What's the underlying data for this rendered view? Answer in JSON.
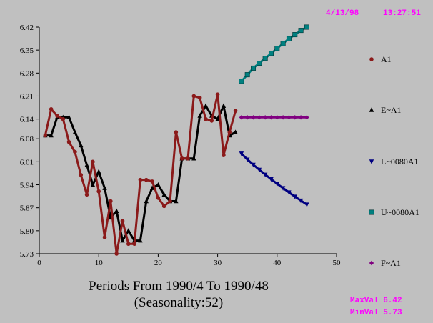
{
  "header": {
    "date": "4/13/98",
    "time": "13:27:51"
  },
  "footer": {
    "caption_line1": "Periods From 1990/4 To 1990/48",
    "caption_line2": "(Seasonality:52)",
    "max_label": "MaxVal 6.42",
    "min_label": "MinVal 5.73"
  },
  "chart_data": {
    "type": "line",
    "xlim": [
      0,
      50
    ],
    "ylim": [
      5.73,
      6.42
    ],
    "x_ticks": [
      0,
      10,
      20,
      30,
      40,
      50
    ],
    "y_ticks": [
      "5.73",
      "5.80",
      "5.87",
      "5.94",
      "6.01",
      "6.08",
      "6.14",
      "6.21",
      "6.28",
      "6.35",
      "6.42"
    ],
    "grid": false,
    "legend_position": "right",
    "series": [
      {
        "name": "A1",
        "color": "#8b1a1a",
        "marker": "circle",
        "x": [
          1,
          2,
          3,
          4,
          5,
          6,
          7,
          8,
          9,
          10,
          11,
          12,
          13,
          14,
          15,
          16,
          17,
          18,
          19,
          20,
          21,
          22,
          23,
          24,
          25,
          26,
          27,
          28,
          29,
          30,
          31,
          32,
          33
        ],
        "values": [
          6.09,
          6.17,
          6.15,
          6.14,
          6.07,
          6.04,
          5.97,
          5.91,
          6.01,
          5.92,
          5.78,
          5.89,
          5.73,
          5.83,
          5.76,
          5.76,
          5.955,
          5.955,
          5.95,
          5.9,
          5.875,
          5.89,
          6.1,
          6.02,
          6.02,
          6.21,
          6.205,
          6.14,
          6.135,
          6.215,
          6.03,
          6.1,
          6.165
        ]
      },
      {
        "name": "E~A1",
        "color": "#000000",
        "marker": "triangle-up",
        "x": [
          1,
          2,
          3,
          4,
          5,
          6,
          7,
          8,
          9,
          10,
          11,
          12,
          13,
          14,
          15,
          16,
          17,
          18,
          19,
          20,
          21,
          22,
          23,
          24,
          25,
          26,
          27,
          28,
          29,
          30,
          31,
          32,
          33
        ],
        "values": [
          6.09,
          6.09,
          6.145,
          6.145,
          6.145,
          6.1,
          6.06,
          6.0,
          5.94,
          5.98,
          5.93,
          5.84,
          5.86,
          5.77,
          5.8,
          5.77,
          5.77,
          5.89,
          5.93,
          5.94,
          5.91,
          5.89,
          5.89,
          6.02,
          6.02,
          6.02,
          6.15,
          6.18,
          6.15,
          6.14,
          6.18,
          6.09,
          6.1
        ]
      },
      {
        "name": "L~0080A1",
        "color": "#000080",
        "marker": "triangle-down",
        "x": [
          34,
          35,
          36,
          37,
          38,
          39,
          40,
          41,
          42,
          43,
          44,
          45
        ],
        "values": [
          6.035,
          6.017,
          6.001,
          5.986,
          5.971,
          5.957,
          5.943,
          5.93,
          5.917,
          5.904,
          5.892,
          5.88
        ]
      },
      {
        "name": "U~0080A1",
        "color": "#008080",
        "marker": "square",
        "x": [
          34,
          35,
          36,
          37,
          38,
          39,
          40,
          41,
          42,
          43,
          44,
          45
        ],
        "values": [
          6.255,
          6.275,
          6.295,
          6.31,
          6.325,
          6.34,
          6.355,
          6.37,
          6.385,
          6.397,
          6.41,
          6.42
        ]
      },
      {
        "name": "F~A1",
        "color": "#800080",
        "marker": "diamond",
        "x": [
          34,
          35,
          36,
          37,
          38,
          39,
          40,
          41,
          42,
          43,
          44,
          45
        ],
        "values": [
          6.145,
          6.145,
          6.145,
          6.145,
          6.145,
          6.145,
          6.145,
          6.145,
          6.145,
          6.145,
          6.145,
          6.145
        ]
      }
    ]
  }
}
